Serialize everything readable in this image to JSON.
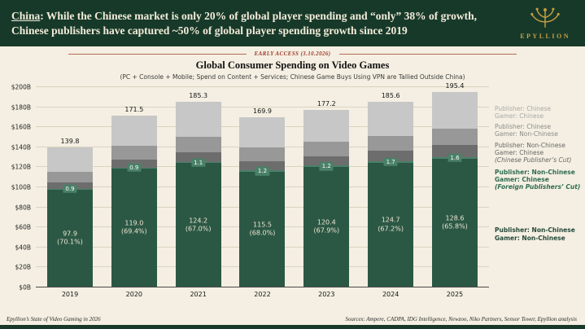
{
  "header": {
    "headline_lead": "China",
    "headline_rest": ": While the Chinese market is only 20% of global player spending and “only” 38% of growth, Chinese publishers have captured ~50% of global player spending growth since 2019",
    "logo_text": "EPYLLION",
    "logo_icon": "epyllion-floral-crest",
    "banner_bg": "#17392a",
    "banner_text_color": "#f3ecd9",
    "gold": "#c9a03f"
  },
  "early_access": {
    "text": "EARLY ACCESS (3.10.2026)",
    "color": "#a03d2e"
  },
  "footer": {
    "left": "Epyllion’s State of Video Gaming in 2026",
    "right": "Sources: Ampere, CADPA, IDG Intelligence, Newzoo, Niko Partners, Sensor Tower, Epyllion analysis"
  },
  "chart_data": {
    "type": "bar",
    "subtype": "stacked",
    "title": "Global Consumer Spending on Video Games",
    "subtitle": "(PC + Console + Mobile; Spend on Content + Services; Chinese Game Buys Using VPN are Tallied Outside China)",
    "categories": [
      "2019",
      "2020",
      "2021",
      "2022",
      "2023",
      "2024",
      "2025"
    ],
    "totals": [
      139.8,
      171.5,
      185.3,
      169.9,
      177.2,
      185.6,
      195.4
    ],
    "total_labels": [
      "139.8",
      "171.5",
      "185.3",
      "169.9",
      "177.2",
      "185.6",
      "195.4"
    ],
    "ylim": [
      0,
      200
    ],
    "ytick_step": 20,
    "ytick_labels": [
      "$0B",
      "$20B",
      "$40B",
      "$60B",
      "$80B",
      "$100B",
      "$120B",
      "$140B",
      "$160B",
      "$180B",
      "$200B"
    ],
    "grid": true,
    "series": [
      {
        "key": "pub-non-chinese-gamer-non-chinese",
        "name": "Publisher: Non-Chinese Gamer: Non-Chinese",
        "color": "#2b5845",
        "values": [
          97.9,
          119.0,
          124.2,
          115.5,
          120.4,
          124.7,
          128.6
        ],
        "value_labels": [
          "97.9",
          "119.0",
          "124.2",
          "115.5",
          "120.4",
          "124.7",
          "128.6"
        ],
        "pct_labels": [
          "(70.1%)",
          "(69.4%)",
          "(67.0%)",
          "(68.0%)",
          "(67.9%)",
          "(67.2%)",
          "(65.8%)"
        ]
      },
      {
        "key": "pub-non-chinese-gamer-chinese-foreign-cut",
        "name": "Publisher: Non-Chinese Gamer: Chinese (Foreign Publishers’ Cut)",
        "color": "#4a8168",
        "values": [
          0.9,
          0.9,
          1.1,
          1.2,
          1.2,
          1.7,
          1.6
        ],
        "value_labels": [
          "0.9",
          "0.9",
          "1.1",
          "1.2",
          "1.2",
          "1.7",
          "1.6"
        ]
      },
      {
        "key": "pub-non-chinese-gamer-chinese-chinese-cut",
        "name": "Publisher: Non-Chinese Gamer: Chinese (Chinese Publisher’s Cut)",
        "color": "#6d6d6d",
        "estimated": true,
        "values": [
          6.0,
          8.0,
          10.0,
          9.0,
          9.6,
          10.2,
          12.2
        ]
      },
      {
        "key": "pub-chinese-gamer-non-chinese",
        "name": "Publisher: Chinese Gamer: Non-Chinese",
        "color": "#989898",
        "estimated": true,
        "values": [
          11.0,
          13.6,
          15.0,
          14.2,
          14.0,
          15.0,
          16.0
        ]
      },
      {
        "key": "pub-chinese-gamer-chinese",
        "name": "Publisher: Chinese Gamer: Chinese",
        "color": "#c7c7c7",
        "estimated": true,
        "values": [
          24.0,
          30.0,
          35.0,
          30.0,
          32.0,
          34.0,
          37.0
        ]
      }
    ],
    "legend": {
      "position": "right",
      "items": [
        {
          "lines": [
            "Publisher: Chinese",
            "Gamer: Chinese"
          ],
          "color": "#a9a9a9",
          "bold": false,
          "italic_from": -1
        },
        {
          "lines": [
            "Publisher: Chinese",
            "Gamer: Non-Chinese"
          ],
          "color": "#8c8c8c",
          "bold": false,
          "italic_from": -1
        },
        {
          "lines": [
            "Publisher: Non-Chinese",
            "Gamer: Chinese",
            "(Chinese Publisher’s Cut)"
          ],
          "color": "#666666",
          "bold": false,
          "italic_from": 2
        },
        {
          "lines": [
            "Publisher: Non-Chinese",
            "Gamer: Chinese",
            "(Foreign Publishers’ Cut)"
          ],
          "color": "#2f6b51",
          "bold": true,
          "italic_from": 2
        },
        {
          "lines": [
            "Publisher: Non-Chinese",
            "Gamer: Non-Chinese"
          ],
          "color": "#25493b",
          "bold": true,
          "italic_from": -1
        }
      ]
    }
  }
}
